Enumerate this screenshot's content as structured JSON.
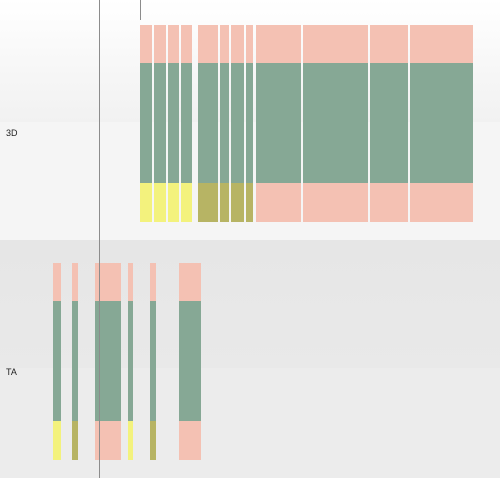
{
  "tracks": [
    {
      "id": "3d",
      "label": "3D"
    },
    {
      "id": "ta",
      "label": "TA"
    }
  ],
  "colors": {
    "salmon": "#f4c1b3",
    "green": "#86a895",
    "yellow": "#f3f27d",
    "olive": "#b7b464",
    "separator": "#ffffff",
    "cursor": "#8c8c8c",
    "band_light": "#f7f7f7",
    "band_mid": "#eeeeee",
    "band_dark": "#e5e5e5"
  }
}
